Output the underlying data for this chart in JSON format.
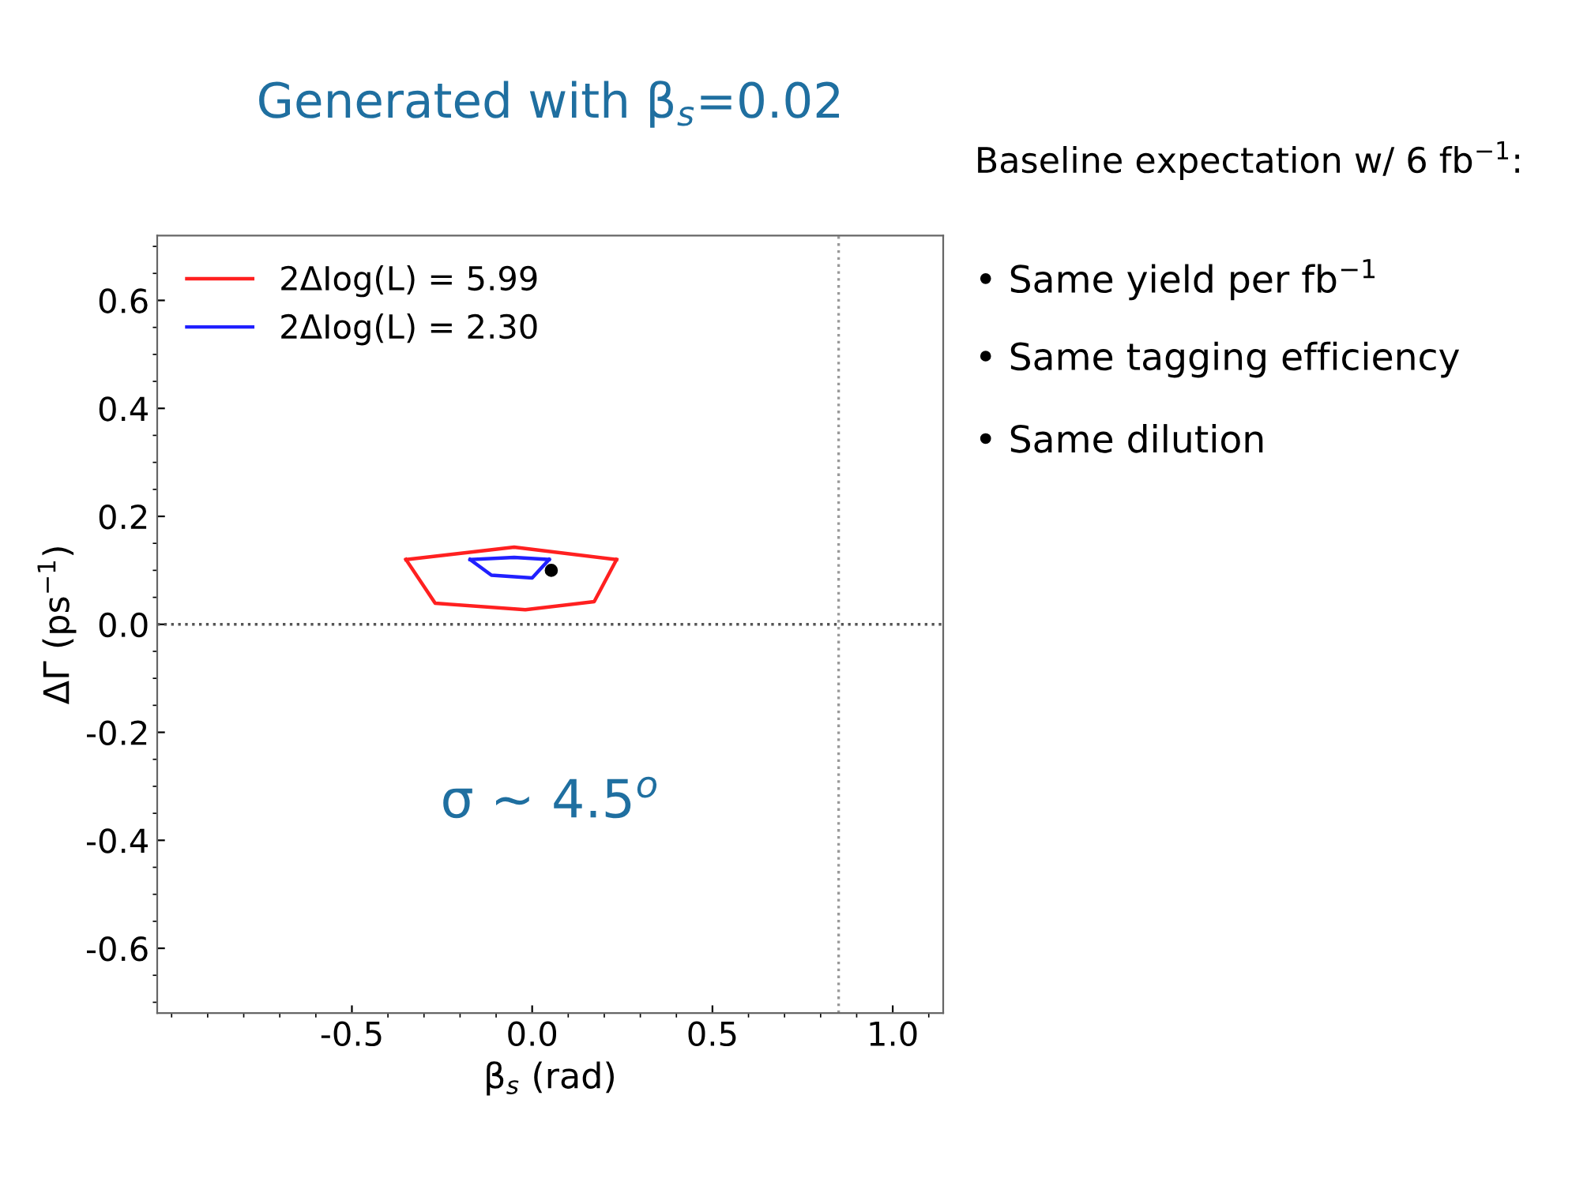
{
  "chart_data": {
    "type": "line",
    "title": "Generated with β$_{s}$=0.02",
    "xlabel": "β$_{s}$ (rad)",
    "ylabel": "ΔΓ (ps$^{−1}$)",
    "series": [
      {
        "name": "2ΔIog(L) = 5.99",
        "color": "#ff2020",
        "x": [
          -0.35,
          -0.05,
          0.234
        ],
        "values": [
          0.12,
          0.143,
          0.12
        ]
      },
      {
        "color": "#ff2020",
        "x": [
          -0.35,
          -0.269,
          -0.019,
          0.172,
          0.234
        ],
        "values": [
          0.12,
          0.039,
          0.027,
          0.042,
          0.12
        ]
      },
      {
        "name": "2ΔIog(L) = 2.30",
        "color": "#2020ff",
        "x": [
          -0.172,
          -0.05,
          0.047
        ],
        "values": [
          0.12,
          0.124,
          0.12
        ]
      },
      {
        "color": "#2020ff",
        "x": [
          -0.172,
          -0.113,
          0.0,
          0.047
        ],
        "values": [
          0.12,
          0.091,
          0.086,
          0.12
        ]
      },
      {
        "type": "scatter",
        "color": "#000000",
        "marker": "circle",
        "x": [
          0.053
        ],
        "values": [
          0.1
        ]
      }
    ],
    "xlim": [
      -1.04,
      1.14
    ],
    "ylim": [
      -0.72,
      0.72
    ],
    "xticks": [
      {
        "value": -0.5,
        "label": "-0.5"
      },
      {
        "value": 0,
        "label": "0.0"
      },
      {
        "value": 0.5,
        "label": "0.5"
      },
      {
        "value": 1.0,
        "label": "1.0"
      }
    ],
    "yticks": [
      {
        "value": -0.6,
        "label": "-0.6"
      },
      {
        "value": -0.4,
        "label": "-0.4"
      },
      {
        "value": -0.2,
        "label": "-0.2"
      },
      {
        "value": 0,
        "label": "0.0"
      },
      {
        "value": 0.2,
        "label": "0.2"
      },
      {
        "value": 0.4,
        "label": "0.4"
      },
      {
        "value": 0.6,
        "label": "0.6"
      }
    ],
    "ref_lines": [
      {
        "axis": "y",
        "value": 0,
        "color": "#555555",
        "line_style": "dotted"
      },
      {
        "axis": "x",
        "value": 0.85,
        "color": "#999999",
        "line_style": "dotted"
      }
    ],
    "annotations": [
      "σ ~ 4.5$^{o}$",
      "Baseline expectation w/ 6 fb$^{−1}$:",
      "• Same yield per fb$^{−1}$",
      "• Same tagging efficiency",
      "• Same dilution"
    ],
    "legend": "top left",
    "grid": false
  }
}
